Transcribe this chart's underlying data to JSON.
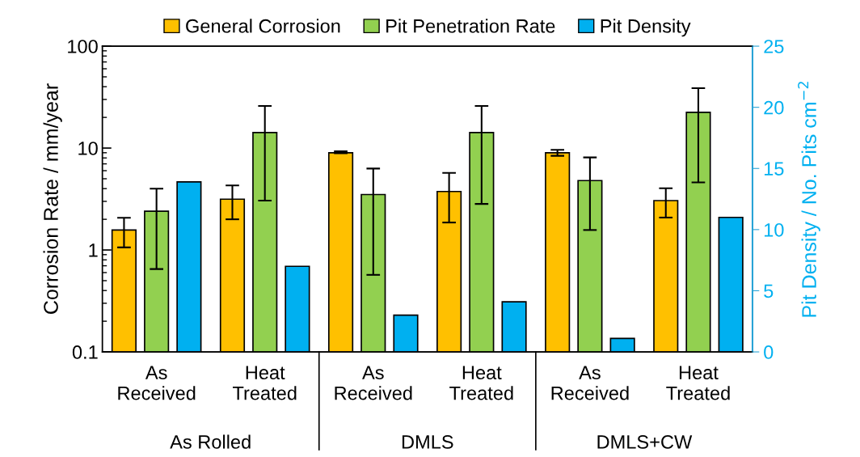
{
  "chart_data": {
    "type": "bar",
    "categories": [
      "As\nReceived",
      "Heat\nTreated",
      "As\nReceived",
      "Heat\nTreated",
      "As\nReceived",
      "Heat\nTreated"
    ],
    "ylabel": "Corrosion Rate / mm/year",
    "y2label": "Pit Density / No. Pits cm$^{−2}$",
    "log": "y",
    "ylim": [
      0.1,
      100
    ],
    "yticks": [
      0.1,
      1,
      10,
      100
    ],
    "y2lim": [
      0,
      25
    ],
    "y2ticks": [
      0,
      5,
      10,
      15,
      20,
      25
    ],
    "legend": "top",
    "grid": false,
    "annotations": [
      "As Rolled",
      "DMLS",
      "DMLS+CW"
    ],
    "series": [
      {
        "name": "General Corrosion",
        "color": "#ffc000",
        "values": [
          1.57,
          3.15,
          9.0,
          3.75,
          9.0,
          3.05
        ],
        "errors": [
          [
            1.06,
            2.07
          ],
          [
            2.0,
            4.3
          ],
          [
            8.9,
            9.3
          ],
          [
            1.86,
            5.7
          ],
          [
            8.4,
            9.6
          ],
          [
            2.08,
            4.03
          ]
        ]
      },
      {
        "name": "Pit Penetration Rate",
        "color": "#92d050",
        "values": [
          2.4,
          14.2,
          3.5,
          14.2,
          4.8,
          22.4
        ],
        "errors": [
          [
            0.65,
            4.0
          ],
          [
            3.05,
            25.9
          ],
          [
            0.57,
            6.3
          ],
          [
            2.83,
            25.9
          ],
          [
            1.57,
            8.1
          ],
          [
            4.6,
            38.7
          ]
        ]
      },
      {
        "name": "Pit Density",
        "color": "#00b0f0",
        "axis": "y2",
        "values": [
          13.9,
          7.0,
          3.0,
          4.1,
          1.1,
          11.0
        ]
      }
    ]
  }
}
